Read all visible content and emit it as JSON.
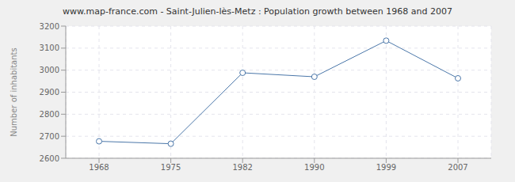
{
  "chart_data": {
    "type": "line",
    "title": "www.map-france.com - Saint-Julien-lès-Metz : Population growth between 1968 and 2007",
    "ylabel": "Number of inhabitants",
    "categories": [
      "1968",
      "1975",
      "1982",
      "1990",
      "1999",
      "2007"
    ],
    "values": [
      2677,
      2666,
      2988,
      2970,
      3134,
      2963
    ],
    "color": "#4b77a9",
    "marker": "circle",
    "ylim": [
      2600,
      3200
    ],
    "yticks": [
      2600,
      2700,
      2800,
      2900,
      3000,
      3100,
      3200
    ],
    "grid": true
  }
}
